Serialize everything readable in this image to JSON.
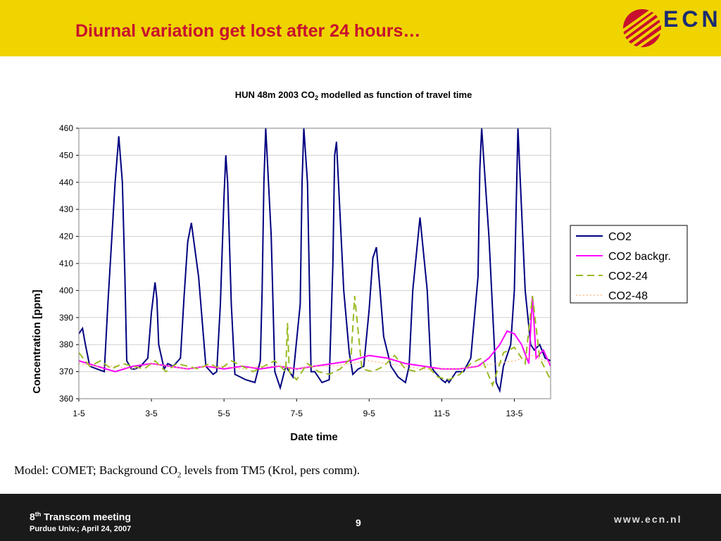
{
  "slide": {
    "title": "Diurnal variation get lost after 24 hours…",
    "logo_text": "ECN",
    "caption_prefix": "Model: COMET; Background CO",
    "caption_sub": "2",
    "caption_suffix": " levels from TM5 (Krol, pers comm)."
  },
  "footer": {
    "meeting_num": "8",
    "meeting_sup": "th",
    "meeting_rest": " Transcom meeting",
    "venue": "Purdue Univ.; April 24, 2007",
    "page": "9",
    "url": "www.ecn.nl"
  },
  "colors": {
    "header_bg": "#EFD400",
    "title": "#C8102E",
    "logo": "#1B2C72",
    "footer_bg": "#1a1a1a"
  },
  "chart_data": {
    "type": "line",
    "title_prefix": "HUN 48m 2003 CO",
    "title_sub": "2",
    "title_suffix": " modelled as function of travel time",
    "xlabel": "Date time",
    "ylabel": "Concentration [ppm]",
    "xlim": [
      0,
      13
    ],
    "ylim": [
      360,
      460
    ],
    "yticks": [
      360,
      370,
      380,
      390,
      400,
      410,
      420,
      430,
      440,
      450,
      460
    ],
    "xticks": [
      {
        "value": 0,
        "label": "1-5"
      },
      {
        "value": 2,
        "label": "3-5"
      },
      {
        "value": 4,
        "label": "5-5"
      },
      {
        "value": 6,
        "label": "7-5"
      },
      {
        "value": 8,
        "label": "9-5"
      },
      {
        "value": 10,
        "label": "11-5"
      },
      {
        "value": 12,
        "label": "13-5"
      }
    ],
    "legend_position": "right",
    "series": [
      {
        "name": "CO2",
        "color": "#000080",
        "dash": "solid",
        "x": [
          0,
          0.1,
          0.18,
          0.3,
          0.5,
          0.7,
          0.8,
          1.0,
          1.1,
          1.2,
          1.27,
          1.32,
          1.45,
          1.55,
          1.7,
          1.9,
          2.0,
          2.1,
          2.15,
          2.2,
          2.35,
          2.45,
          2.6,
          2.8,
          2.9,
          3.0,
          3.1,
          3.3,
          3.5,
          3.7,
          3.8,
          3.9,
          4.0,
          4.05,
          4.1,
          4.2,
          4.3,
          4.6,
          4.85,
          5.0,
          5.05,
          5.1,
          5.15,
          5.3,
          5.4,
          5.55,
          5.7,
          5.9,
          6.1,
          6.15,
          6.2,
          6.3,
          6.4,
          6.5,
          6.7,
          6.9,
          7.0,
          7.05,
          7.1,
          7.3,
          7.45,
          7.55,
          7.7,
          7.85,
          8.0,
          8.1,
          8.2,
          8.3,
          8.4,
          8.6,
          8.8,
          9.0,
          9.1,
          9.2,
          9.4,
          9.6,
          9.7,
          9.8,
          10.0,
          10.1,
          10.15,
          10.2,
          10.4,
          10.6,
          10.8,
          11.0,
          11.05,
          11.1,
          11.3,
          11.5,
          11.6,
          11.7,
          11.9,
          12.0,
          12.05,
          12.1,
          12.3,
          12.45,
          12.55,
          12.7,
          12.85,
          13.0
        ],
        "values": [
          384,
          386,
          380,
          372,
          371,
          370,
          395,
          440,
          457,
          440,
          404,
          374,
          371,
          371,
          372,
          375,
          392,
          403,
          397,
          380,
          371,
          373,
          372,
          375,
          398,
          418,
          425,
          405,
          372,
          369,
          370,
          395,
          435,
          450,
          440,
          395,
          369,
          367,
          366,
          374,
          400,
          440,
          460,
          420,
          370,
          364,
          372,
          368,
          395,
          440,
          460,
          440,
          370,
          370,
          366,
          367,
          410,
          450,
          455,
          400,
          377,
          369,
          371,
          372,
          393,
          412,
          416,
          400,
          383,
          372,
          368,
          366,
          372,
          400,
          427,
          400,
          372,
          370,
          367,
          366,
          367,
          366,
          370,
          370,
          375,
          405,
          445,
          460,
          420,
          366,
          363,
          372,
          380,
          400,
          430,
          460,
          400,
          380,
          378,
          380,
          375,
          374
        ]
      },
      {
        "name": "CO2 backgr.",
        "color": "#FF00FF",
        "dash": "solid",
        "x": [
          0,
          0.5,
          1.0,
          1.5,
          2.0,
          2.5,
          3.0,
          3.5,
          4.0,
          4.5,
          5.0,
          5.5,
          6.0,
          6.5,
          7.0,
          7.5,
          8.0,
          8.5,
          9.0,
          9.5,
          10.0,
          10.5,
          11.0,
          11.3,
          11.6,
          11.8,
          12.0,
          12.2,
          12.4,
          12.5,
          12.6,
          12.8,
          13.0
        ],
        "values": [
          374,
          372,
          370,
          372,
          373,
          372,
          371,
          372,
          371,
          372,
          371,
          372,
          371,
          372,
          373,
          374,
          376,
          375,
          373,
          372,
          371,
          371,
          372,
          375,
          380,
          385,
          384,
          380,
          373,
          398,
          375,
          378,
          372
        ]
      },
      {
        "name": "CO2-24",
        "color": "#99BB22",
        "dash": "dashed",
        "x": [
          0,
          0.3,
          0.6,
          0.9,
          1.2,
          1.5,
          1.8,
          2.1,
          2.4,
          2.7,
          3.0,
          3.3,
          3.6,
          3.9,
          4.2,
          4.5,
          4.8,
          5.1,
          5.4,
          5.7,
          5.75,
          5.8,
          6.0,
          6.3,
          6.6,
          6.9,
          7.2,
          7.5,
          7.6,
          7.8,
          8.1,
          8.4,
          8.7,
          9.0,
          9.3,
          9.6,
          9.9,
          10.2,
          10.5,
          10.8,
          11.1,
          11.4,
          11.7,
          12.0,
          12.3,
          12.5,
          12.7,
          13.0
        ],
        "values": [
          377,
          372,
          374,
          371,
          373,
          372,
          371,
          374,
          370,
          373,
          372,
          371,
          373,
          371,
          374,
          372,
          370,
          372,
          374,
          370,
          388,
          370,
          367,
          373,
          370,
          369,
          371,
          375,
          398,
          371,
          370,
          372,
          376,
          371,
          370,
          372,
          368,
          367,
          369,
          373,
          375,
          365,
          377,
          379,
          373,
          398,
          375,
          367
        ]
      },
      {
        "name": "CO2-48",
        "color": "#FFB070",
        "dash": "dotted",
        "x": [
          0,
          0.5,
          1.0,
          1.5,
          2.0,
          2.5,
          3.0,
          3.5,
          4.0,
          4.5,
          5.0,
          5.5,
          6.0,
          6.5,
          7.0,
          7.5,
          8.0,
          8.5,
          9.0,
          9.5,
          10.0,
          10.5,
          11.0,
          11.5,
          12.0,
          12.5,
          13.0
        ],
        "values": [
          373,
          372,
          372,
          371,
          373,
          372,
          371,
          372,
          372,
          371,
          372,
          372,
          371,
          372,
          372,
          373,
          374,
          373,
          372,
          371,
          371,
          371,
          372,
          373,
          374,
          376,
          373
        ]
      }
    ]
  }
}
